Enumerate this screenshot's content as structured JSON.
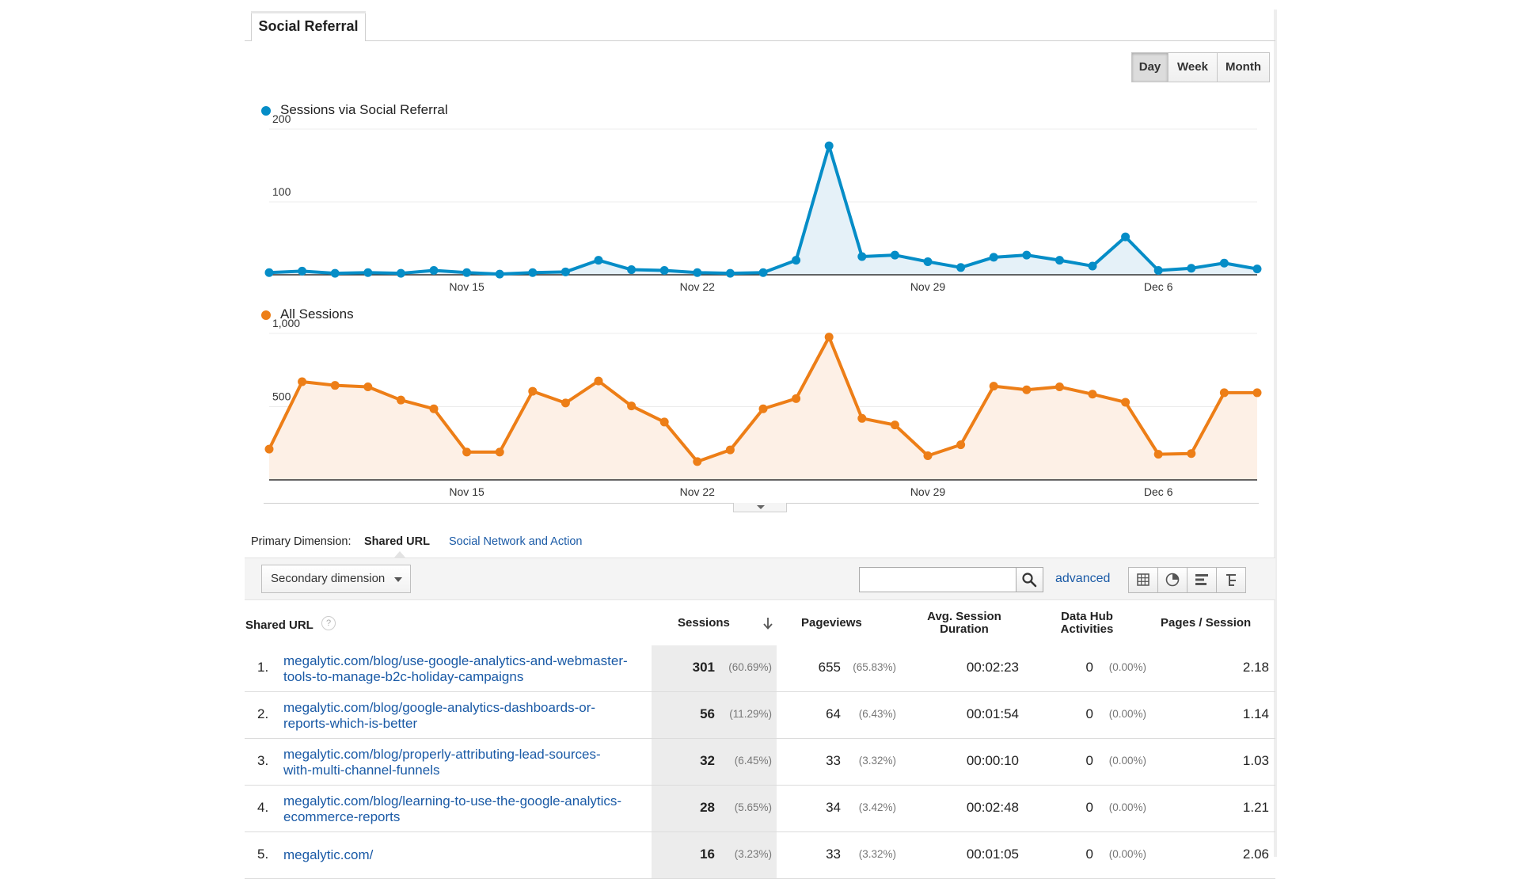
{
  "tab": {
    "label": "Social Referral"
  },
  "granularity": {
    "options": [
      "Day",
      "Week",
      "Month"
    ],
    "active": "Day"
  },
  "colors": {
    "social": "#058dc7",
    "social_fill": "#e5f1f8",
    "all": "#ed7e17",
    "all_fill": "#fdf0e6",
    "link": "#1a5aa6"
  },
  "chart_data": [
    {
      "type": "line",
      "title": "",
      "series": [
        {
          "name": "Sessions via Social Referral",
          "values": [
            3,
            5,
            2,
            3,
            2,
            6,
            3,
            1,
            3,
            4,
            20,
            7,
            6,
            3,
            2,
            3,
            20,
            177,
            25,
            27,
            18,
            10,
            24,
            27,
            20,
            12,
            52,
            6,
            9,
            16,
            8
          ]
        }
      ],
      "x": [
        "Nov 9",
        "Nov 10",
        "Nov 11",
        "Nov 12",
        "Nov 13",
        "Nov 14",
        "Nov 15",
        "Nov 16",
        "Nov 17",
        "Nov 18",
        "Nov 19",
        "Nov 20",
        "Nov 21",
        "Nov 22",
        "Nov 23",
        "Nov 24",
        "Nov 25",
        "Nov 26",
        "Nov 27",
        "Nov 28",
        "Nov 29",
        "Nov 30",
        "Dec 1",
        "Dec 2",
        "Dec 3",
        "Dec 4",
        "Dec 5",
        "Dec 6",
        "Dec 7",
        "Dec 8",
        "Dec 9"
      ],
      "x_tick_labels": [
        "Nov 15",
        "Nov 22",
        "Nov 29",
        "Dec 6"
      ],
      "y_tick_labels": [
        "200",
        "100"
      ],
      "ylim": [
        0,
        200
      ],
      "area": true,
      "grid": true
    },
    {
      "type": "line",
      "title": "",
      "series": [
        {
          "name": "All Sessions",
          "values": [
            210,
            670,
            645,
            635,
            545,
            485,
            190,
            190,
            605,
            525,
            675,
            505,
            395,
            125,
            205,
            485,
            555,
            975,
            420,
            375,
            165,
            240,
            640,
            615,
            635,
            585,
            530,
            175,
            180,
            595,
            595
          ]
        }
      ],
      "x": [
        "Nov 9",
        "Nov 10",
        "Nov 11",
        "Nov 12",
        "Nov 13",
        "Nov 14",
        "Nov 15",
        "Nov 16",
        "Nov 17",
        "Nov 18",
        "Nov 19",
        "Nov 20",
        "Nov 21",
        "Nov 22",
        "Nov 23",
        "Nov 24",
        "Nov 25",
        "Nov 26",
        "Nov 27",
        "Nov 28",
        "Nov 29",
        "Nov 30",
        "Dec 1",
        "Dec 2",
        "Dec 3",
        "Dec 4",
        "Dec 5",
        "Dec 6",
        "Dec 7",
        "Dec 8",
        "Dec 9"
      ],
      "x_tick_labels": [
        "Nov 15",
        "Nov 22",
        "Nov 29",
        "Dec 6"
      ],
      "y_tick_labels": [
        "1,000",
        "500"
      ],
      "ylim": [
        0,
        1000
      ],
      "area": true,
      "grid": true
    }
  ],
  "dimension": {
    "label": "Primary Dimension:",
    "active": "Shared URL",
    "alternate": "Social Network and Action"
  },
  "toolbar": {
    "secondary_dimension": "Secondary dimension",
    "search_value": "",
    "search_placeholder": "",
    "advanced": "advanced"
  },
  "table": {
    "headers": {
      "url": "Shared URL",
      "sessions": "Sessions",
      "pageviews": "Pageviews",
      "duration_line1": "Avg. Session",
      "duration_line2": "Duration",
      "datahub_line1": "Data Hub",
      "datahub_line2": "Activities",
      "pages": "Pages / Session",
      "help": "?"
    },
    "rows": [
      {
        "rank": "1.",
        "url_line1": "megalytic.com/blog/use-google-analytics-and-webmaster-",
        "url_line2": "tools-to-manage-b2c-holiday-campaigns",
        "sessions": "301",
        "sessions_pct": "(60.69%)",
        "pageviews": "655",
        "pageviews_pct": "(65.83%)",
        "duration": "00:02:23",
        "datahub": "0",
        "datahub_pct": "(0.00%)",
        "pages": "2.18"
      },
      {
        "rank": "2.",
        "url_line1": "megalytic.com/blog/google-analytics-dashboards-or-",
        "url_line2": "reports-which-is-better",
        "sessions": "56",
        "sessions_pct": "(11.29%)",
        "pageviews": "64",
        "pageviews_pct": "(6.43%)",
        "duration": "00:01:54",
        "datahub": "0",
        "datahub_pct": "(0.00%)",
        "pages": "1.14"
      },
      {
        "rank": "3.",
        "url_line1": "megalytic.com/blog/properly-attributing-lead-sources-",
        "url_line2": "with-multi-channel-funnels",
        "sessions": "32",
        "sessions_pct": "(6.45%)",
        "pageviews": "33",
        "pageviews_pct": "(3.32%)",
        "duration": "00:00:10",
        "datahub": "0",
        "datahub_pct": "(0.00%)",
        "pages": "1.03"
      },
      {
        "rank": "4.",
        "url_line1": "megalytic.com/blog/learning-to-use-the-google-analytics-",
        "url_line2": "ecommerce-reports",
        "sessions": "28",
        "sessions_pct": "(5.65%)",
        "pageviews": "34",
        "pageviews_pct": "(3.42%)",
        "duration": "00:02:48",
        "datahub": "0",
        "datahub_pct": "(0.00%)",
        "pages": "1.21"
      },
      {
        "rank": "5.",
        "url_line1": "megalytic.com/",
        "url_line2": "",
        "sessions": "16",
        "sessions_pct": "(3.23%)",
        "pageviews": "33",
        "pageviews_pct": "(3.32%)",
        "duration": "00:01:05",
        "datahub": "0",
        "datahub_pct": "(0.00%)",
        "pages": "2.06"
      }
    ]
  }
}
